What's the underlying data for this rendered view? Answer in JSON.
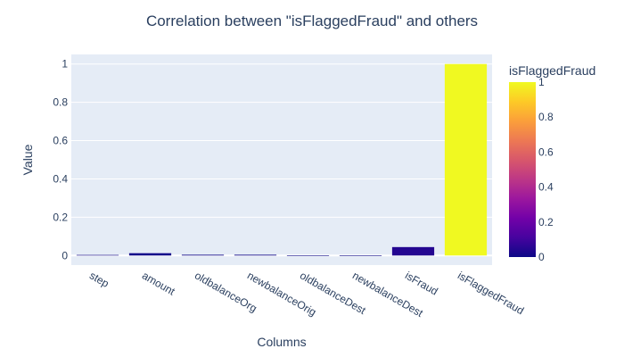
{
  "chart_data": {
    "type": "bar",
    "title": "Correlation between \"isFlaggedFraud\" and others",
    "xlabel": "Columns",
    "ylabel": "Value",
    "categories": [
      "step",
      "amount",
      "oldbalanceOrg",
      "newbalanceOrig",
      "oldbalanceDest",
      "newbalanceDest",
      "isFraud",
      "isFlaggedFraud"
    ],
    "values": [
      0.003,
      0.012,
      0.004,
      0.004,
      -0.001,
      -0.001,
      0.044,
      1.0
    ],
    "ylim": [
      -0.05,
      1.05
    ],
    "yticks": [
      0,
      0.2,
      0.4,
      0.6,
      0.8,
      1
    ],
    "ytick_labels": [
      "0",
      "0.2",
      "0.4",
      "0.6",
      "0.8",
      "1"
    ],
    "grid": true,
    "colorbar": {
      "title": "isFlaggedFraud",
      "range": [
        0,
        1
      ],
      "ticks": [
        0,
        0.2,
        0.4,
        0.6,
        0.8,
        1
      ],
      "tick_labels": [
        "0",
        "0.2",
        "0.4",
        "0.6",
        "0.8",
        "1"
      ],
      "colorscale": [
        "#0d0887",
        "#46039f",
        "#7201a8",
        "#9c179e",
        "#bd3786",
        "#d8576b",
        "#ed7953",
        "#fb9f3a",
        "#fdca26",
        "#f0f921"
      ]
    },
    "colors": {
      "plot_bg": "#e5ecf6",
      "grid": "#ffffff",
      "text": "#2a3f5f"
    }
  }
}
